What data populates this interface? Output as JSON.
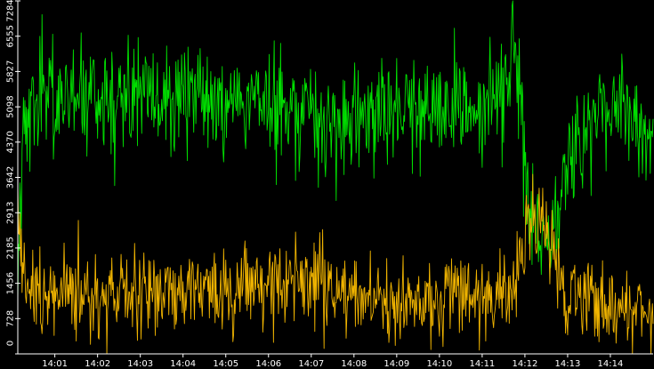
{
  "chart_data": {
    "type": "line",
    "title": "",
    "xlabel": "",
    "ylabel": "",
    "grid": false,
    "legend": "none",
    "background": "#000000",
    "axis_color": "#ffffff",
    "ylim": [
      0,
      7284
    ],
    "y_ticks": [
      "0",
      "728",
      "1456",
      "2185",
      "2913",
      "3642",
      "4370",
      "5098",
      "5827",
      "6555",
      "7284"
    ],
    "y_tick_values": [
      0,
      728,
      1456,
      2185,
      2913,
      3642,
      4370,
      5098,
      5827,
      6555,
      7284
    ],
    "xlim": [
      "14:00:08",
      "14:15:00"
    ],
    "x_ticks": [
      "14:01",
      "14:02",
      "14:03",
      "14:04",
      "14:05",
      "14:06",
      "14:07",
      "14:08",
      "14:09",
      "14:10",
      "14:11",
      "14:12",
      "14:13",
      "14:14"
    ],
    "sample_interval_s": 1,
    "series": [
      {
        "color": "#00e000",
        "profile_time": [
          "14:00:08",
          "14:00:12",
          "14:00:20",
          "14:00:40",
          "14:01:00",
          "14:01:40",
          "14:02:20",
          "14:03:00",
          "14:03:40",
          "14:04:20",
          "14:05:00",
          "14:05:40",
          "14:06:20",
          "14:07:00",
          "14:07:30",
          "14:08:00",
          "14:08:40",
          "14:09:20",
          "14:10:00",
          "14:10:40",
          "14:11:10",
          "14:11:35",
          "14:11:45",
          "14:11:55",
          "14:12:05",
          "14:12:20",
          "14:12:35",
          "14:12:50",
          "14:13:00",
          "14:13:20",
          "14:13:40",
          "14:14:10",
          "14:14:40",
          "14:15:00"
        ],
        "profile_level": [
          1700,
          3900,
          5000,
          5300,
          5100,
          5250,
          5200,
          5400,
          5300,
          5200,
          5000,
          5150,
          5300,
          5000,
          4600,
          4900,
          5100,
          5000,
          5200,
          5100,
          5200,
          5600,
          6500,
          5400,
          3000,
          2600,
          2200,
          3200,
          4000,
          4700,
          5000,
          5200,
          4700,
          4400
        ],
        "profile_spread": [
          500,
          600,
          650,
          650,
          650,
          650,
          650,
          650,
          650,
          650,
          650,
          650,
          650,
          650,
          700,
          650,
          650,
          650,
          650,
          650,
          650,
          700,
          700,
          700,
          600,
          500,
          450,
          600,
          650,
          650,
          650,
          650,
          650,
          650
        ]
      },
      {
        "color": "#f0b400",
        "profile_time": [
          "14:00:08",
          "14:00:12",
          "14:00:20",
          "14:00:40",
          "14:01:00",
          "14:01:40",
          "14:02:20",
          "14:03:00",
          "14:03:40",
          "14:04:20",
          "14:05:00",
          "14:05:40",
          "14:06:20",
          "14:07:00",
          "14:07:30",
          "14:08:00",
          "14:08:40",
          "14:09:20",
          "14:10:00",
          "14:10:40",
          "14:11:10",
          "14:11:35",
          "14:11:45",
          "14:11:55",
          "14:12:05",
          "14:12:20",
          "14:12:35",
          "14:12:50",
          "14:13:00",
          "14:13:20",
          "14:13:40",
          "14:14:10",
          "14:14:40",
          "14:15:00"
        ],
        "profile_level": [
          2900,
          2100,
          1500,
          1300,
          1300,
          1200,
          1300,
          1250,
          1300,
          1400,
          1300,
          1400,
          1450,
          1500,
          1400,
          1200,
          1150,
          1100,
          1200,
          1150,
          1050,
          1200,
          1300,
          1800,
          2700,
          2900,
          2400,
          1700,
          1200,
          1100,
          1050,
          1000,
          950,
          900
        ],
        "profile_spread": [
          500,
          550,
          520,
          520,
          520,
          520,
          520,
          520,
          520,
          540,
          520,
          540,
          540,
          540,
          520,
          500,
          500,
          500,
          500,
          500,
          480,
          500,
          520,
          600,
          600,
          550,
          550,
          550,
          500,
          480,
          480,
          470,
          470,
          470
        ]
      }
    ]
  }
}
